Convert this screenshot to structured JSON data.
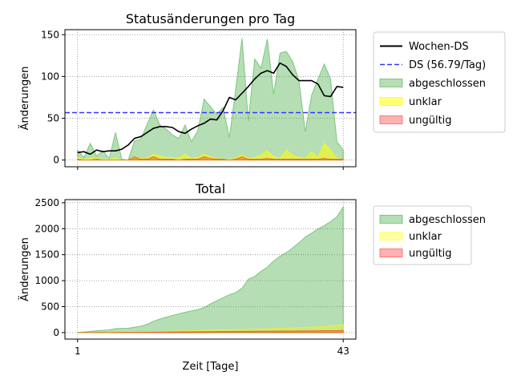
{
  "chart_data": [
    {
      "type": "area",
      "title": "Statusänderungen pro Tag",
      "xlabel": "",
      "ylabel": "Änderungen",
      "xlim": [
        -1,
        45
      ],
      "ylim": [
        -8,
        156
      ],
      "yticks": [
        0,
        50,
        100,
        150
      ],
      "xticks": [
        1,
        43
      ],
      "show_xtick_labels": false,
      "grid": "dotted",
      "legend_position": "outside-right",
      "x": [
        1,
        2,
        3,
        4,
        5,
        6,
        7,
        8,
        9,
        10,
        11,
        12,
        13,
        14,
        15,
        16,
        17,
        18,
        19,
        20,
        21,
        22,
        23,
        24,
        25,
        26,
        27,
        28,
        29,
        30,
        31,
        32,
        33,
        34,
        35,
        36,
        37,
        38,
        39,
        40,
        41,
        42,
        43
      ],
      "series": [
        {
          "name": "abgeschlossen",
          "kind": "area",
          "color": "#2ca02c",
          "opacity": 0.35,
          "values": [
            12,
            3,
            20,
            5,
            11,
            2,
            33,
            1,
            0,
            23,
            25,
            43,
            60,
            42,
            37,
            30,
            26,
            42,
            22,
            35,
            73,
            64,
            55,
            63,
            27,
            85,
            146,
            47,
            121,
            110,
            145,
            79,
            128,
            130,
            118,
            95,
            34,
            78,
            97,
            115,
            97,
            22,
            12
          ]
        },
        {
          "name": "unklar",
          "kind": "area",
          "color": "#ffff00",
          "opacity": 0.55,
          "values": [
            3,
            1,
            2,
            2,
            1,
            1,
            2,
            0,
            0,
            4,
            2,
            2,
            7,
            5,
            3,
            3,
            2,
            7,
            2,
            3,
            7,
            4,
            2,
            1,
            1,
            2,
            6,
            2,
            3,
            6,
            11,
            4,
            2,
            12,
            6,
            3,
            2,
            10,
            3,
            20,
            12,
            2,
            1
          ]
        },
        {
          "name": "ungültig",
          "kind": "area",
          "color": "#ff0000",
          "opacity": 0.3,
          "values": [
            1,
            0,
            0,
            1,
            0,
            0,
            0,
            0,
            0,
            4,
            1,
            1,
            4,
            1,
            1,
            1,
            0,
            1,
            1,
            1,
            4,
            2,
            1,
            1,
            0,
            1,
            4,
            1,
            1,
            1,
            2,
            1,
            1,
            1,
            1,
            1,
            1,
            1,
            1,
            2,
            1,
            1,
            1
          ]
        },
        {
          "name": "Wochen-DS",
          "kind": "line",
          "color": "#000000",
          "values": [
            9,
            10,
            7,
            12,
            10,
            11,
            11,
            13,
            18,
            26,
            28,
            33,
            38,
            40,
            40,
            39,
            34,
            32,
            37,
            41,
            44,
            49,
            48,
            59,
            75,
            72,
            80,
            88,
            97,
            104,
            107,
            104,
            116,
            112,
            102,
            95,
            95,
            95,
            91,
            77,
            76,
            88,
            87
          ]
        },
        {
          "name": "DS (56.79/Tag)",
          "kind": "hline",
          "color": "#3333ff",
          "value": 56.79
        }
      ]
    },
    {
      "type": "area",
      "title": "Total",
      "xlabel": "Zeit [Tage]",
      "ylabel": "Änderungen",
      "xlim": [
        -1,
        45
      ],
      "ylim": [
        -125,
        2560
      ],
      "yticks": [
        0,
        500,
        1000,
        1500,
        2000,
        2500
      ],
      "xticks": [
        1,
        43
      ],
      "grid": "dotted",
      "legend_position": "outside-right",
      "x": [
        1,
        2,
        3,
        4,
        5,
        6,
        7,
        8,
        9,
        10,
        11,
        12,
        13,
        14,
        15,
        16,
        17,
        18,
        19,
        20,
        21,
        22,
        23,
        24,
        25,
        26,
        27,
        28,
        29,
        30,
        31,
        32,
        33,
        34,
        35,
        36,
        37,
        38,
        39,
        40,
        41,
        42,
        43
      ],
      "series": [
        {
          "name": "abgeschlossen",
          "color": "#2ca02c",
          "opacity": 0.35,
          "values": [
            4,
            12,
            25,
            36,
            44,
            52,
            78,
            82,
            86,
            104,
            125,
            160,
            218,
            262,
            298,
            330,
            362,
            392,
            418,
            444,
            484,
            552,
            612,
            672,
            730,
            770,
            856,
            1030,
            1080,
            1180,
            1260,
            1380,
            1470,
            1540,
            1630,
            1730,
            1840,
            1915,
            1995,
            2060,
            2140,
            2230,
            2420
          ]
        },
        {
          "name": "unklar",
          "color": "#ffff00",
          "opacity": 0.35,
          "values": [
            1,
            2,
            3,
            4,
            5,
            6,
            8,
            9,
            10,
            12,
            14,
            16,
            20,
            24,
            27,
            30,
            32,
            35,
            37,
            40,
            44,
            48,
            50,
            52,
            54,
            56,
            60,
            63,
            66,
            70,
            74,
            78,
            82,
            86,
            90,
            95,
            100,
            106,
            112,
            120,
            132,
            145,
            155
          ]
        },
        {
          "name": "ungültig",
          "color": "#ff0000",
          "opacity": 0.3,
          "values": [
            0,
            1,
            1,
            2,
            2,
            3,
            4,
            5,
            6,
            7,
            8,
            9,
            10,
            11,
            12,
            13,
            14,
            15,
            16,
            17,
            18,
            19,
            20,
            21,
            22,
            23,
            24,
            25,
            26,
            27,
            28,
            29,
            30,
            31,
            32,
            33,
            34,
            35,
            36,
            37,
            38,
            39,
            40
          ]
        }
      ]
    }
  ]
}
